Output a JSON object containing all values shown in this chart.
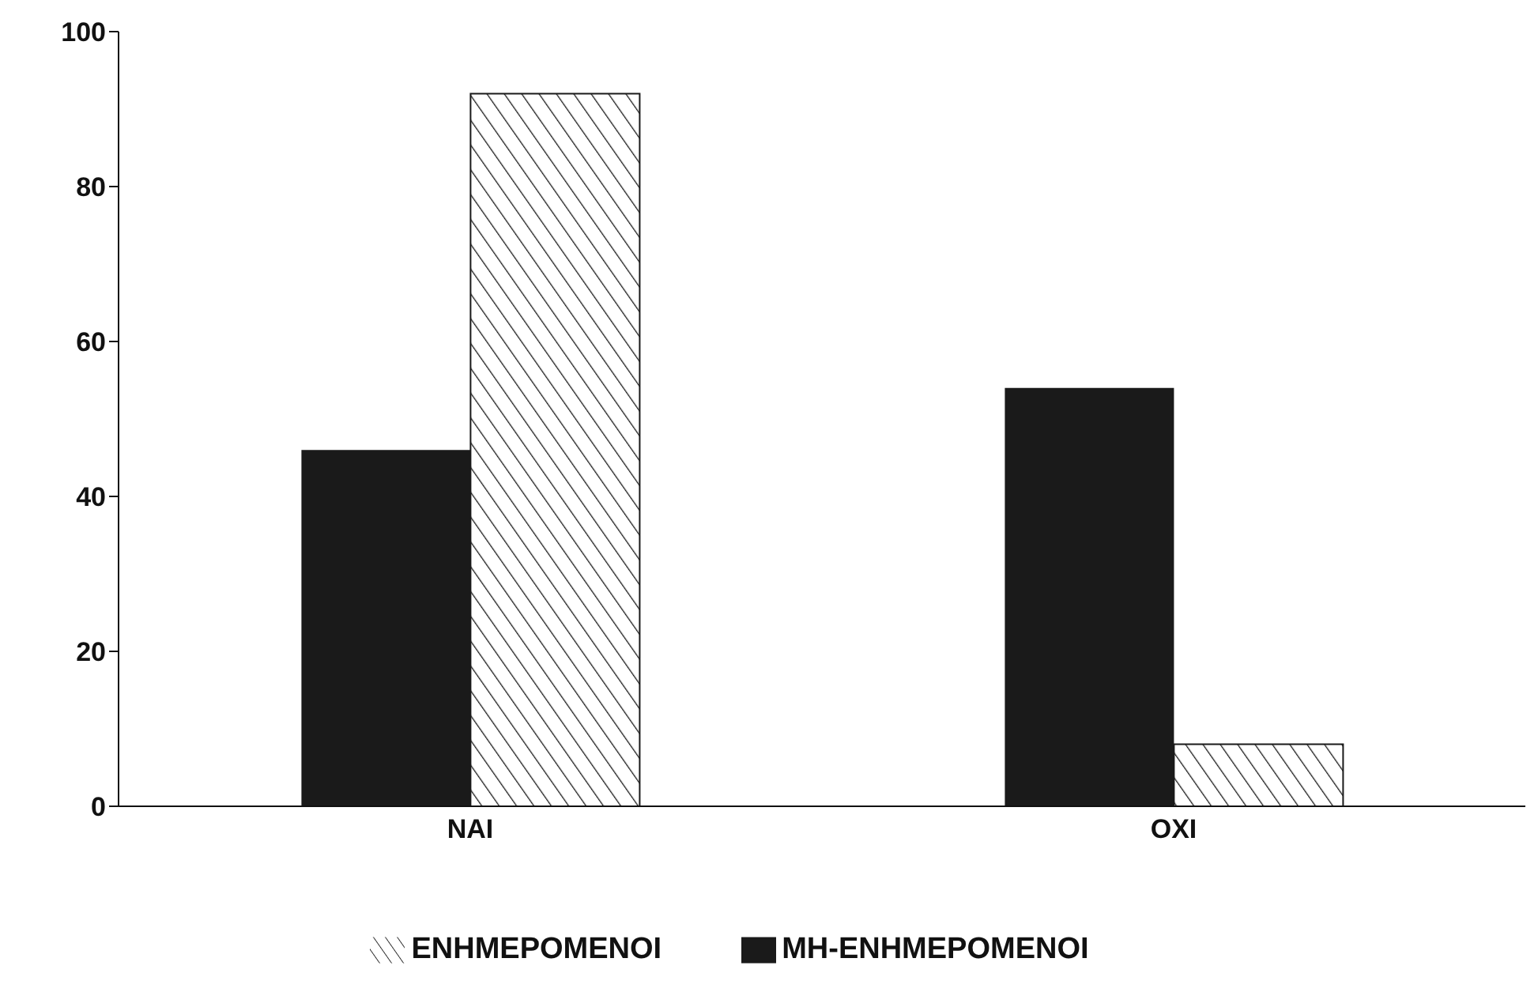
{
  "chart_data": {
    "type": "bar",
    "categories": [
      "ΝΑΙ",
      "ΟΧΙ"
    ],
    "series": [
      {
        "name": "ΜΗ-ΕΝΗΜΕΡΟΜΕΝΟΙ",
        "color": "#1a1a1a",
        "values": [
          46,
          54
        ]
      },
      {
        "name": "ΕΝΗΜΕΡΟΜΕΝΟΙ",
        "color": "#1a1a1a",
        "values": [
          92,
          8
        ]
      }
    ],
    "ylim": [
      0,
      100
    ],
    "yticks": [
      0,
      20,
      40,
      60,
      80,
      100
    ],
    "grid": false,
    "legend": "bottom"
  }
}
